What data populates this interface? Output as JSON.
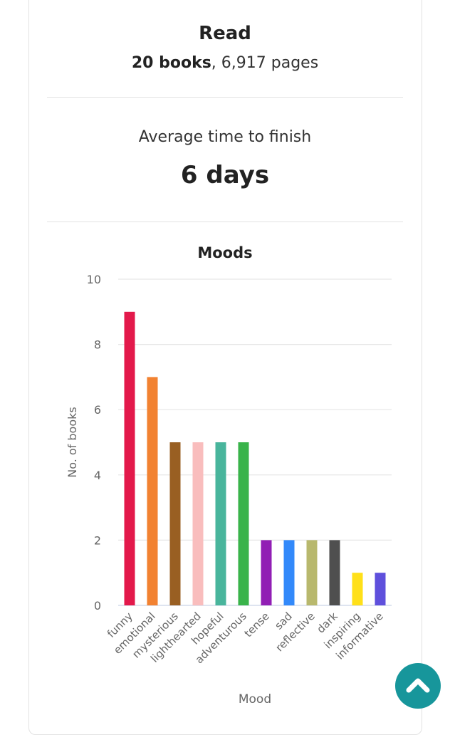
{
  "read": {
    "title": "Read",
    "books": "20 books",
    "pages": ", 6,917 pages"
  },
  "average": {
    "label": "Average time to finish",
    "value": "6 days"
  },
  "chart_data": {
    "type": "bar",
    "title": "Moods",
    "xlabel": "Mood",
    "ylabel": "No. of books",
    "ylim": [
      0,
      10
    ],
    "yticks": [
      0,
      2,
      4,
      6,
      8,
      10
    ],
    "grid": true,
    "categories": [
      "funny",
      "emotional",
      "mysterious",
      "lighthearted",
      "hopeful",
      "adventurous",
      "tense",
      "sad",
      "reflective",
      "dark",
      "inspiring",
      "informative"
    ],
    "values": [
      9,
      7,
      5,
      5,
      5,
      5,
      2,
      2,
      2,
      2,
      1,
      1
    ],
    "colors": [
      "#e3194b",
      "#f28231",
      "#995f22",
      "#f9bdbd",
      "#49b59c",
      "#39b34a",
      "#911eb4",
      "#3289fa",
      "#b8b86d",
      "#4f4f4f",
      "#ffe019",
      "#5f50dc"
    ]
  },
  "scroll_top": {
    "icon": "chevron-up-icon",
    "color": "#17969b"
  }
}
